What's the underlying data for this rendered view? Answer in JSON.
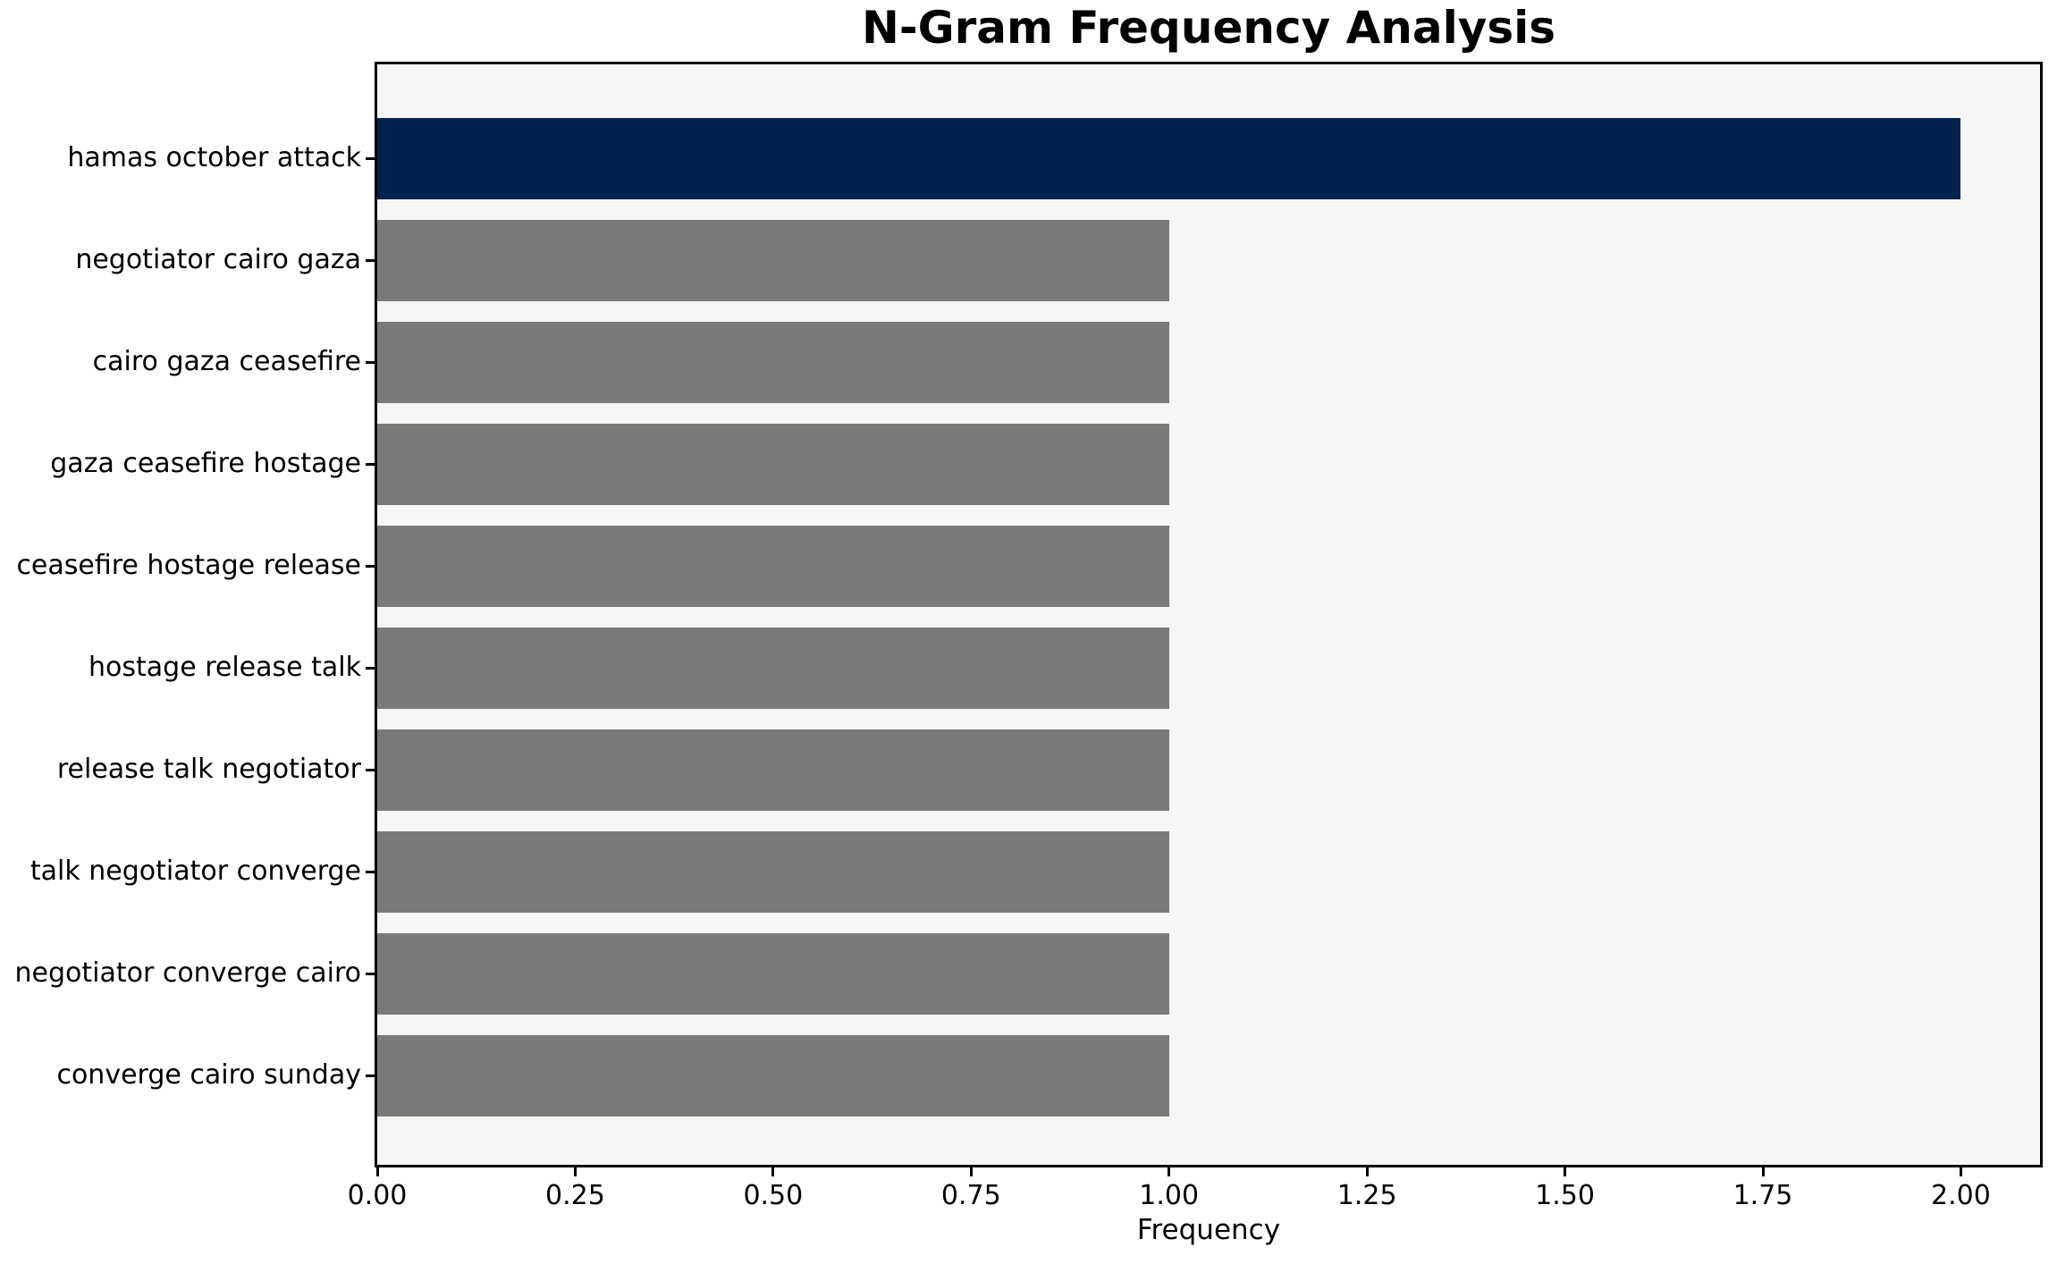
{
  "chart_data": {
    "type": "bar",
    "orientation": "horizontal",
    "title": "N-Gram Frequency Analysis",
    "xlabel": "Frequency",
    "ylabel": "",
    "categories": [
      "hamas october attack",
      "negotiator cairo gaza",
      "cairo gaza ceasefire",
      "gaza ceasefire hostage",
      "ceasefire hostage release",
      "hostage release talk",
      "release talk negotiator",
      "talk negotiator converge",
      "negotiator converge cairo",
      "converge cairo sunday"
    ],
    "values": [
      2,
      1,
      1,
      1,
      1,
      1,
      1,
      1,
      1,
      1
    ],
    "bar_colors": [
      "#00234e",
      "#7a7b78",
      "#7a7b78",
      "#7a7b78",
      "#7a7b78",
      "#7a7b78",
      "#7a7b78",
      "#7a7b78",
      "#7a7b78",
      "#7a7b78"
    ],
    "highlight_color": "#00234e",
    "default_color": "#7a7b78",
    "xlim": [
      0,
      2.1
    ],
    "xticks": [
      0.0,
      0.25,
      0.5,
      0.75,
      1.0,
      1.25,
      1.5,
      1.75,
      2.0
    ],
    "xtick_labels": [
      "0.00",
      "0.25",
      "0.50",
      "0.75",
      "1.00",
      "1.25",
      "1.50",
      "1.75",
      "2.00"
    ],
    "grid": false,
    "legend": null,
    "plot_background": "#f6f6f4",
    "figure_background": "#ffffff",
    "spine_color": "#000000"
  }
}
